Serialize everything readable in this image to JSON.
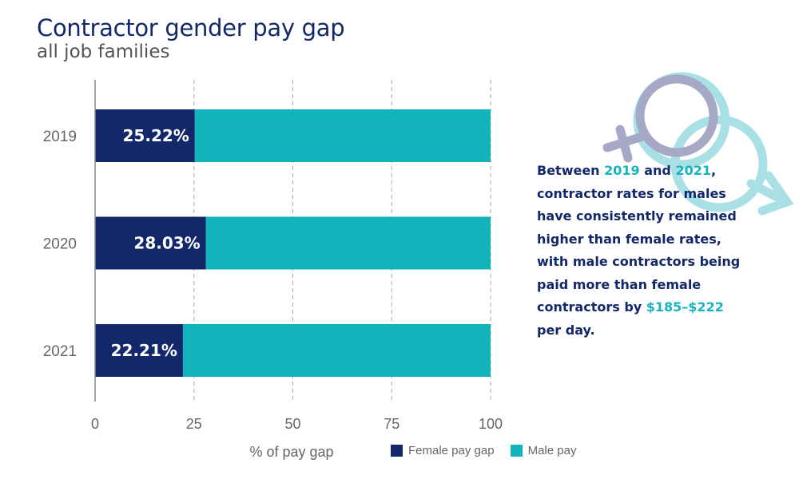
{
  "title": "Contractor gender pay gap",
  "subtitle": "all job families",
  "colors": {
    "female": "#13286b",
    "male": "#12b3bb",
    "title": "#13286b",
    "highlight": "#17b3bf",
    "grid": "#aaaaaa"
  },
  "chart_data": {
    "type": "bar",
    "orientation": "horizontal",
    "stacked": true,
    "categories": [
      "2019",
      "2020",
      "2021"
    ],
    "series": [
      {
        "name": "Female pay gap",
        "values": [
          25.22,
          28.03,
          22.21
        ],
        "labels": [
          "25.22%",
          "28.03%",
          "22.21%"
        ]
      },
      {
        "name": "Male pay",
        "values": [
          74.78,
          71.97,
          77.79
        ]
      }
    ],
    "xlabel": "% of pay gap",
    "xlim": [
      0,
      100
    ],
    "xticks": [
      "0",
      "25",
      "50",
      "75",
      "100"
    ],
    "grid": "vertical dashed",
    "legend_position": "bottom"
  },
  "annotation": {
    "parts": [
      {
        "text": "Between ",
        "highlight": false
      },
      {
        "text": "2019",
        "highlight": true
      },
      {
        "text": " and ",
        "highlight": false
      },
      {
        "text": "2021",
        "highlight": true
      },
      {
        "text": ", contractor rates for males have consistently remained higher than female rates, with male contractors being paid more than female contractors by ",
        "highlight": false
      },
      {
        "text": "$185–$222",
        "highlight": true
      },
      {
        "text": " per day.",
        "highlight": false
      }
    ]
  },
  "decoration": {
    "icon_names": [
      "female-symbol-icon",
      "male-symbol-icon"
    ]
  }
}
